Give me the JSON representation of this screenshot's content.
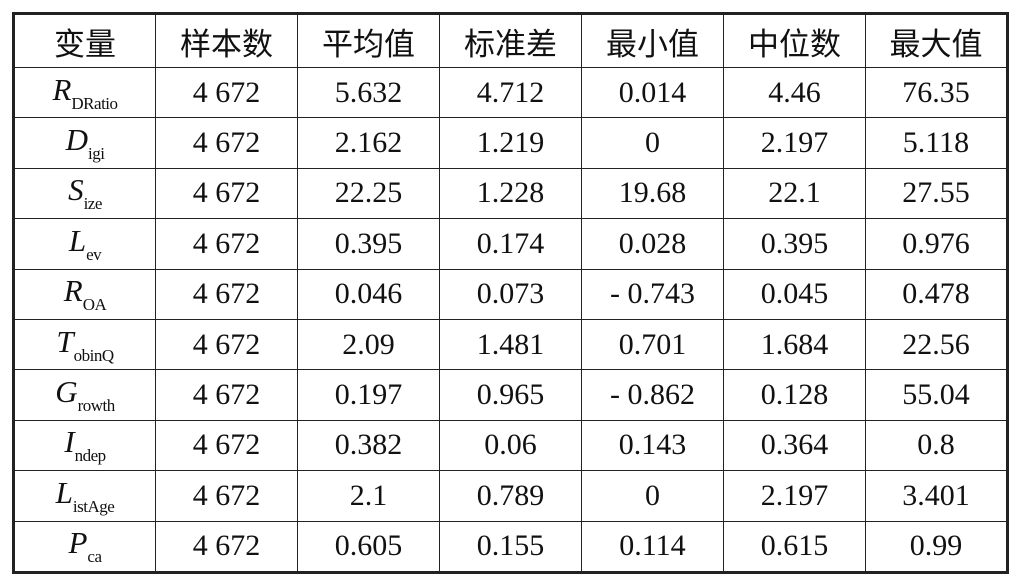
{
  "table": {
    "header": [
      "变量",
      "样本数",
      "平均值",
      "标准差",
      "最小值",
      "中位数",
      "最大值"
    ],
    "rows": [
      [
        {
          "main": "R",
          "sub": "DRatio"
        },
        "4 672",
        "5.632",
        "4.712",
        "0.014",
        "4.46",
        "76.35"
      ],
      [
        {
          "main": "D",
          "sub": "igi"
        },
        "4 672",
        "2.162",
        "1.219",
        "0",
        "2.197",
        "5.118"
      ],
      [
        {
          "main": "S",
          "sub": "ize"
        },
        "4 672",
        "22.25",
        "1.228",
        "19.68",
        "22.1",
        "27.55"
      ],
      [
        {
          "main": "L",
          "sub": "ev"
        },
        "4 672",
        "0.395",
        "0.174",
        "0.028",
        "0.395",
        "0.976"
      ],
      [
        {
          "main": "R",
          "sub": "OA"
        },
        "4 672",
        "0.046",
        "0.073",
        "- 0.743",
        "0.045",
        "0.478"
      ],
      [
        {
          "main": "T",
          "sub": "obinQ"
        },
        "4 672",
        "2.09",
        "1.481",
        "0.701",
        "1.684",
        "22.56"
      ],
      [
        {
          "main": "G",
          "sub": "rowth"
        },
        "4 672",
        "0.197",
        "0.965",
        "- 0.862",
        "0.128",
        "55.04"
      ],
      [
        {
          "main": "I",
          "sub": "ndep"
        },
        "4 672",
        "0.382",
        "0.06",
        "0.143",
        "0.364",
        "0.8"
      ],
      [
        {
          "main": "L",
          "sub": "istAge"
        },
        "4 672",
        "2.1",
        "0.789",
        "0",
        "2.197",
        "3.401"
      ],
      [
        {
          "main": "P",
          "sub": "ca"
        },
        "4 672",
        "0.605",
        "0.155",
        "0.114",
        "0.615",
        "0.99"
      ]
    ]
  }
}
